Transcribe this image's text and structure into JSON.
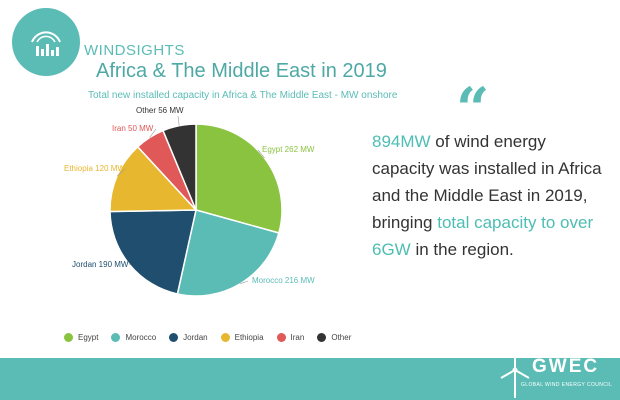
{
  "header": {
    "brand": "WINDSIGHTS",
    "title": "Africa & The Middle East in 2019",
    "subtitle": "Total new installed capacity in Africa & The Middle East - MW onshore"
  },
  "chart_data": {
    "type": "pie",
    "unit": "MW",
    "slices": [
      {
        "name": "Egypt",
        "value": 262,
        "label": "Egypt 262 MW",
        "color": "#8ac33f"
      },
      {
        "name": "Morocco",
        "value": 216,
        "label": "Morocco 216 MW",
        "color": "#5bbcb6"
      },
      {
        "name": "Jordan",
        "value": 190,
        "label": "Jordan 190 MW",
        "color": "#1f4e6e"
      },
      {
        "name": "Ethiopia",
        "value": 120,
        "label": "Ethiopia 120 MW",
        "color": "#e8b730"
      },
      {
        "name": "Iran",
        "value": 50,
        "label": "Iran 50 MW",
        "color": "#e05858"
      },
      {
        "name": "Other",
        "value": 56,
        "label": "Other 56 MW",
        "color": "#333333"
      }
    ],
    "legend": {
      "position": "bottom",
      "items": [
        "Egypt",
        "Morocco",
        "Jordan",
        "Ethiopia",
        "Iran",
        "Other"
      ]
    }
  },
  "colors": {
    "accent": "#5bbcb6",
    "highlight": "#4ebdb3",
    "label_egypt": "#8ac33f",
    "label_morocco": "#5bbcb6",
    "label_jordan": "#1f4e6e",
    "label_ethiopia": "#e8b730",
    "label_iran": "#e05858",
    "label_other": "#333333"
  },
  "quote": {
    "mark": "“",
    "part1": "894MW",
    "part2": " of wind energy capacity was installed in Africa and the Middle East in 2019, bringing ",
    "part3": "total capacity to over 6GW",
    "part4": " in the region."
  },
  "footer": {
    "logo_name": "GWEC",
    "logo_full": "GLOBAL WIND ENERGY COUNCIL"
  },
  "icons": {
    "logo": "wind-chart-icon",
    "footer_logo": "wind-turbine-icon"
  }
}
